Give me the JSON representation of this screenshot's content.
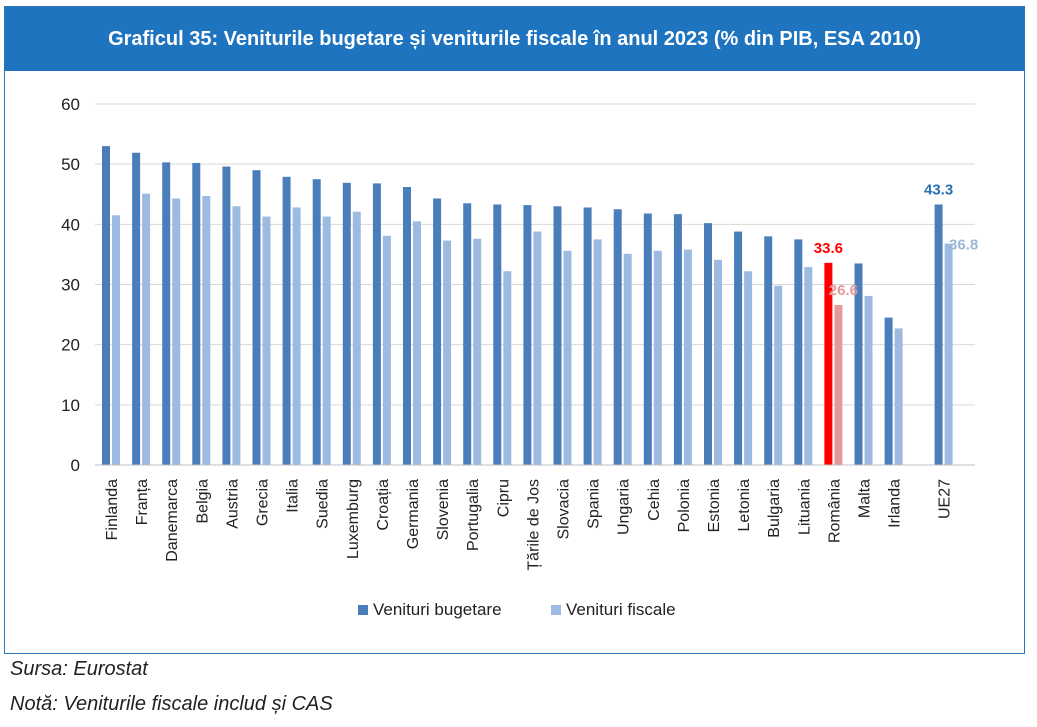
{
  "title": "Graficul 35: Veniturile bugetare și veniturile fiscale în anul 2023 (% din PIB, ESA 2010)",
  "source": "Sursa: Eurostat",
  "note": "Notă: Veniturile fiscale includ și CAS",
  "colors": {
    "budget": "#4a7ebb",
    "fiscal": "#9dbbe0",
    "romania_budget": "#ff0000",
    "romania_fiscal": "#e49a9a",
    "label_eu_budget": "#2573b5",
    "label_eu_fiscal": "#9db7d6",
    "grid": "#d9d9d9",
    "title_bg": "#1f74c0"
  },
  "chart_data": {
    "type": "bar",
    "categories": [
      "Finlanda",
      "Franța",
      "Danemarca",
      "Belgia",
      "Austria",
      "Grecia",
      "Italia",
      "Suedia",
      "Luxemburg",
      "Croația",
      "Germania",
      "Slovenia",
      "Portugalia",
      "Cipru",
      "Țările de Jos",
      "Slovacia",
      "Spania",
      "Ungaria",
      "Cehia",
      "Polonia",
      "Estonia",
      "Letonia",
      "Bulgaria",
      "Lituania",
      "România",
      "Malta",
      "Irlanda",
      "UE27"
    ],
    "series": [
      {
        "name": "Venituri bugetare",
        "values": [
          53.0,
          51.9,
          50.3,
          50.2,
          49.6,
          49.0,
          47.9,
          47.5,
          46.9,
          46.8,
          46.2,
          44.3,
          43.5,
          43.3,
          43.2,
          43.0,
          42.8,
          42.5,
          41.8,
          41.7,
          40.2,
          38.8,
          38.0,
          37.5,
          33.6,
          33.5,
          24.5,
          43.3
        ]
      },
      {
        "name": "Venituri fiscale",
        "values": [
          41.5,
          45.1,
          44.3,
          44.7,
          43.0,
          41.3,
          42.8,
          41.3,
          42.1,
          38.1,
          40.5,
          37.3,
          37.6,
          32.2,
          38.8,
          35.6,
          37.5,
          35.1,
          35.6,
          35.8,
          34.1,
          32.2,
          29.8,
          32.9,
          26.6,
          28.1,
          22.7,
          36.8
        ]
      }
    ],
    "highlight_labels": [
      {
        "category": "România",
        "series": "Venituri bugetare",
        "text": "33.6"
      },
      {
        "category": "România",
        "series": "Venituri fiscale",
        "text": "26.6"
      },
      {
        "category": "UE27",
        "series": "Venituri bugetare",
        "text": "43.3"
      },
      {
        "category": "UE27",
        "series": "Venituri fiscale",
        "text": "36.8"
      }
    ],
    "ylim": [
      0,
      60
    ],
    "yticks": [
      0,
      10,
      20,
      30,
      40,
      50,
      60
    ],
    "grid": true,
    "legend_position": "bottom-center"
  }
}
